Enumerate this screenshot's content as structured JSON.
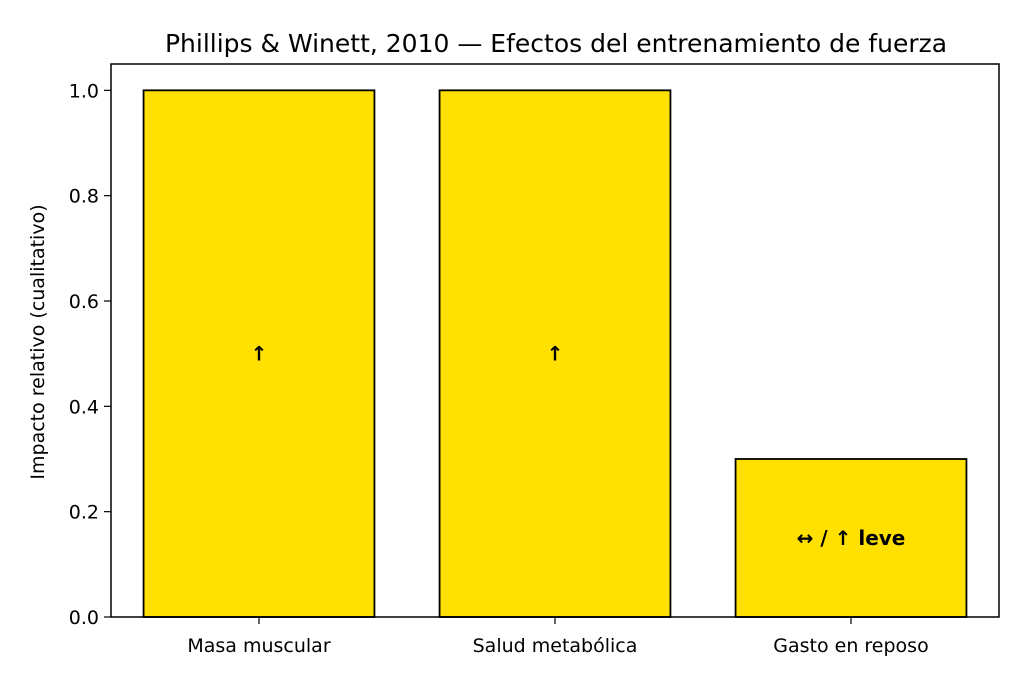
{
  "chart_data": {
    "type": "bar",
    "title": "Phillips & Winett, 2010 — Efectos del entrenamiento de fuerza",
    "xlabel": "",
    "ylabel": "Impacto relativo (cualitativo)",
    "categories": [
      "Masa muscular",
      "Salud metabólica",
      "Gasto en reposo"
    ],
    "values": [
      1.0,
      1.0,
      0.3
    ],
    "bar_labels": [
      "↑",
      "↑",
      "↔ / ↑ leve"
    ],
    "ylim": [
      0,
      1.05
    ],
    "yticks": [
      "0.0",
      "0.2",
      "0.4",
      "0.6",
      "0.8",
      "1.0"
    ],
    "grid": false,
    "bar_color": "#FFE000",
    "edge_color": "#000000"
  }
}
